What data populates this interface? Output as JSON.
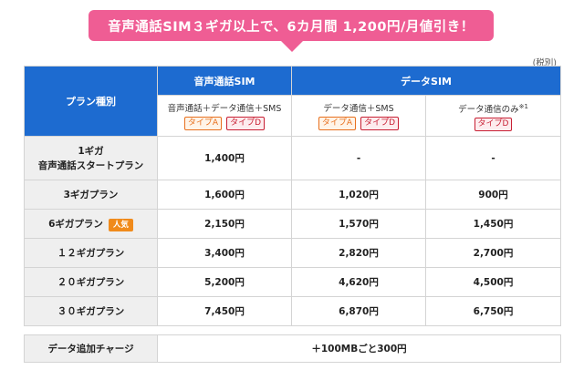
{
  "banner": {
    "text": "音声通話SIM３ギガ以上で、6カ月間 1,200円/月値引き！"
  },
  "tax_note": "(税別)",
  "header": {
    "plan_type": "プラン種別",
    "voice_sim": "音声通話SIM",
    "data_sim": "データSIM",
    "col1_desc": "音声通話＋データ通信＋SMS",
    "col2_desc": "データ通信＋SMS",
    "col3_desc": "データ通信のみ",
    "col3_note": "※1",
    "tag_a": "タイプA",
    "tag_d": "タイプD"
  },
  "plans": [
    {
      "name_line1": "1ギガ",
      "name_line2": "音声通話スタートプラン",
      "badge": "",
      "voice": "1,400円",
      "sms": "-",
      "data_only": "-"
    },
    {
      "name_line1": "3ギガプラン",
      "name_line2": "",
      "badge": "",
      "voice": "1,600円",
      "sms": "1,020円",
      "data_only": "900円"
    },
    {
      "name_line1": "6ギガプラン",
      "name_line2": "",
      "badge": "人気",
      "voice": "2,150円",
      "sms": "1,570円",
      "data_only": "1,450円"
    },
    {
      "name_line1": "１２ギガプラン",
      "name_line2": "",
      "badge": "",
      "voice": "3,400円",
      "sms": "2,820円",
      "data_only": "2,700円"
    },
    {
      "name_line1": "２０ギガプラン",
      "name_line2": "",
      "badge": "",
      "voice": "5,200円",
      "sms": "4,620円",
      "data_only": "4,500円"
    },
    {
      "name_line1": "３０ギガプラン",
      "name_line2": "",
      "badge": "",
      "voice": "7,450円",
      "sms": "6,870円",
      "data_only": "6,750円"
    }
  ],
  "extra": {
    "label": "データ追加チャージ",
    "value": "＋100MBごと300円"
  },
  "colors": {
    "banner": "#ef5d94",
    "header_blue": "#1d6bd0",
    "tag_a": "#e8701e",
    "tag_d": "#c81f33",
    "popular_badge": "#f08a1b"
  }
}
